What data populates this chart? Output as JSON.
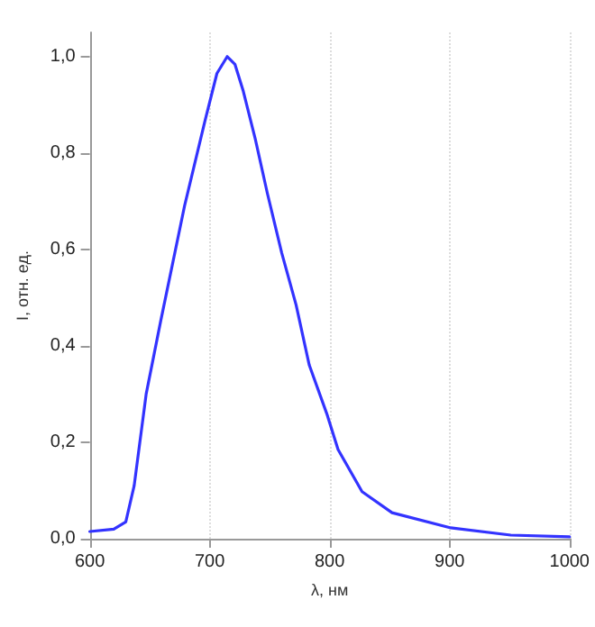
{
  "chart_data": {
    "type": "line",
    "xlabel": "λ, нм",
    "ylabel": "I, отн. ед.",
    "x": [
      600,
      620,
      630,
      637,
      647,
      659,
      679,
      696,
      706,
      714.6,
      721,
      728,
      738,
      748,
      760,
      772,
      783,
      797.5,
      807,
      827,
      852,
      901,
      951,
      1000
    ],
    "series": [
      {
        "color": "#3333ff",
        "values": [
          0.015,
          0.02,
          0.035,
          0.11,
          0.3,
          0.45,
          0.69,
          0.866,
          0.965,
          1.0,
          0.984,
          0.928,
          0.829,
          0.717,
          0.593,
          0.485,
          0.36,
          0.26,
          0.185,
          0.0975,
          0.054,
          0.0225,
          0.0075,
          0.004
        ]
      }
    ],
    "xlim": [
      600,
      1000
    ],
    "xticks": [
      600,
      700,
      800,
      900,
      1000
    ],
    "ylim": [
      0,
      1.05
    ],
    "yticks": [
      {
        "value": 0,
        "label": "0,0"
      },
      {
        "value": 0.2,
        "label": "0,2"
      },
      {
        "value": 0.4,
        "label": "0,4"
      },
      {
        "value": 0.6,
        "label": "0,6"
      },
      {
        "value": 0.8,
        "label": "0,8"
      },
      {
        "value": 1.0,
        "label": "1,0"
      }
    ],
    "grid": "x",
    "marker": "none",
    "line_style": "solid"
  }
}
